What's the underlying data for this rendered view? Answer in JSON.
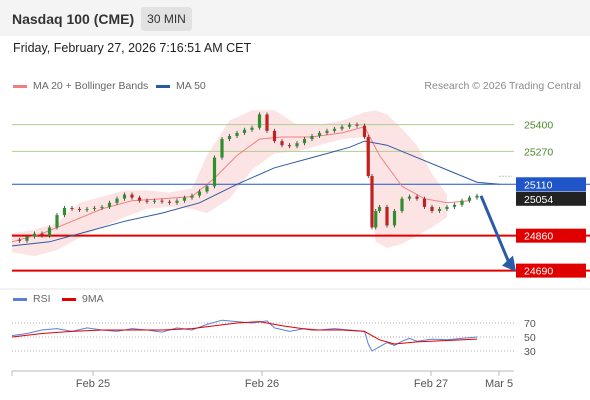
{
  "header": {
    "title": "Nasdaq 100 (CME)",
    "timeframe": "30 MIN"
  },
  "datetime": "Friday, February 27, 2026 7:16:51 AM CET",
  "legend": [
    {
      "label": "MA 20 + Bollinger Bands",
      "color": "#f08080"
    },
    {
      "label": "MA 50",
      "color": "#2c5aa0"
    }
  ],
  "copyright": "Research © 2026 Trading Central",
  "rsi_legend": [
    {
      "label": "RSI",
      "color": "#5b7fd6"
    },
    {
      "label": "9MA",
      "color": "#e00000"
    }
  ],
  "chart_data": {
    "type": "line",
    "x_ticks": [
      "Feb 25",
      "Feb 26",
      "Feb 27",
      "Mar 5"
    ],
    "ylim": [
      24620,
      25520
    ],
    "current_price": 25054,
    "levels": [
      {
        "value": 25400,
        "label": "25400",
        "kind": "resistance"
      },
      {
        "value": 25270,
        "label": "25270",
        "kind": "resistance"
      },
      {
        "value": 25110,
        "label": "25110",
        "kind": "pivot"
      },
      {
        "value": 24860,
        "label": "24860",
        "kind": "support"
      },
      {
        "value": 24690,
        "label": "24690",
        "kind": "support"
      }
    ],
    "price_series": [
      [
        0,
        24840
      ],
      [
        2,
        24835
      ],
      [
        4,
        24855
      ],
      [
        6,
        24870
      ],
      [
        8,
        24860
      ],
      [
        10,
        24900
      ],
      [
        12,
        24960
      ],
      [
        14,
        24995
      ],
      [
        16,
        24990
      ],
      [
        18,
        24985
      ],
      [
        20,
        24990
      ],
      [
        22,
        24995
      ],
      [
        24,
        25000
      ],
      [
        26,
        25020
      ],
      [
        28,
        25040
      ],
      [
        30,
        25060
      ],
      [
        32,
        25045
      ],
      [
        34,
        25030
      ],
      [
        36,
        25025
      ],
      [
        38,
        25030
      ],
      [
        40,
        25025
      ],
      [
        42,
        25020
      ],
      [
        44,
        25030
      ],
      [
        46,
        25045
      ],
      [
        48,
        25055
      ],
      [
        50,
        25075
      ],
      [
        52,
        25100
      ],
      [
        54,
        25240
      ],
      [
        56,
        25330
      ],
      [
        58,
        25345
      ],
      [
        60,
        25360
      ],
      [
        62,
        25375
      ],
      [
        64,
        25385
      ],
      [
        66,
        25450
      ],
      [
        68,
        25370
      ],
      [
        70,
        25320
      ],
      [
        72,
        25300
      ],
      [
        74,
        25295
      ],
      [
        76,
        25310
      ],
      [
        78,
        25330
      ],
      [
        80,
        25345
      ],
      [
        82,
        25360
      ],
      [
        84,
        25370
      ],
      [
        86,
        25380
      ],
      [
        88,
        25390
      ],
      [
        90,
        25400
      ],
      [
        92,
        25395
      ],
      [
        94,
        25340
      ],
      [
        95,
        25150
      ],
      [
        96,
        24900
      ],
      [
        97,
        24980
      ],
      [
        98,
        25000
      ],
      [
        100,
        24910
      ],
      [
        102,
        24980
      ],
      [
        104,
        25040
      ],
      [
        106,
        25050
      ],
      [
        108,
        25040
      ],
      [
        110,
        25000
      ],
      [
        112,
        24980
      ],
      [
        114,
        24990
      ],
      [
        116,
        25000
      ],
      [
        118,
        25010
      ],
      [
        120,
        25030
      ],
      [
        122,
        25045
      ],
      [
        124,
        25054
      ]
    ],
    "bb_upper": [
      [
        0,
        24870
      ],
      [
        6,
        24890
      ],
      [
        12,
        24920
      ],
      [
        18,
        25020
      ],
      [
        24,
        25050
      ],
      [
        30,
        25080
      ],
      [
        36,
        25080
      ],
      [
        42,
        25070
      ],
      [
        48,
        25090
      ],
      [
        52,
        25250
      ],
      [
        58,
        25420
      ],
      [
        64,
        25470
      ],
      [
        70,
        25470
      ],
      [
        76,
        25400
      ],
      [
        82,
        25400
      ],
      [
        88,
        25420
      ],
      [
        94,
        25460
      ],
      [
        97,
        25470
      ],
      [
        100,
        25450
      ],
      [
        104,
        25380
      ],
      [
        108,
        25300
      ],
      [
        112,
        25160
      ],
      [
        116,
        25060
      ]
    ],
    "bb_lower": [
      [
        0,
        24780
      ],
      [
        6,
        24760
      ],
      [
        12,
        24790
      ],
      [
        18,
        24850
      ],
      [
        24,
        24900
      ],
      [
        30,
        24950
      ],
      [
        36,
        24990
      ],
      [
        42,
        25000
      ],
      [
        48,
        24990
      ],
      [
        52,
        24970
      ],
      [
        58,
        25040
      ],
      [
        64,
        25180
      ],
      [
        70,
        25260
      ],
      [
        76,
        25270
      ],
      [
        82,
        25300
      ],
      [
        88,
        25330
      ],
      [
        94,
        25340
      ],
      [
        97,
        24830
      ],
      [
        100,
        24800
      ],
      [
        104,
        24820
      ],
      [
        108,
        24860
      ],
      [
        112,
        24900
      ],
      [
        116,
        24950
      ]
    ],
    "ma20": [
      [
        0,
        24830
      ],
      [
        8,
        24870
      ],
      [
        16,
        24930
      ],
      [
        24,
        24990
      ],
      [
        32,
        25030
      ],
      [
        40,
        25040
      ],
      [
        48,
        25050
      ],
      [
        54,
        25140
      ],
      [
        60,
        25250
      ],
      [
        66,
        25330
      ],
      [
        72,
        25340
      ],
      [
        80,
        25340
      ],
      [
        88,
        25360
      ],
      [
        94,
        25390
      ],
      [
        98,
        25250
      ],
      [
        104,
        25100
      ],
      [
        110,
        25040
      ],
      [
        116,
        25020
      ],
      [
        122,
        25030
      ]
    ],
    "ma50": [
      [
        0,
        24810
      ],
      [
        10,
        24830
      ],
      [
        20,
        24880
      ],
      [
        30,
        24930
      ],
      [
        40,
        24970
      ],
      [
        50,
        25020
      ],
      [
        60,
        25110
      ],
      [
        70,
        25190
      ],
      [
        80,
        25240
      ],
      [
        90,
        25290
      ],
      [
        94,
        25320
      ],
      [
        100,
        25300
      ],
      [
        108,
        25240
      ],
      [
        116,
        25180
      ],
      [
        124,
        25120
      ],
      [
        130,
        25110
      ]
    ],
    "rsi_levels": [
      70,
      50,
      30
    ],
    "rsi": [
      [
        0,
        52
      ],
      [
        4,
        55
      ],
      [
        8,
        60
      ],
      [
        12,
        62
      ],
      [
        16,
        58
      ],
      [
        20,
        63
      ],
      [
        24,
        60
      ],
      [
        28,
        58
      ],
      [
        32,
        62
      ],
      [
        36,
        60
      ],
      [
        40,
        57
      ],
      [
        44,
        63
      ],
      [
        48,
        60
      ],
      [
        52,
        68
      ],
      [
        56,
        74
      ],
      [
        60,
        72
      ],
      [
        64,
        70
      ],
      [
        68,
        73
      ],
      [
        70,
        63
      ],
      [
        74,
        58
      ],
      [
        78,
        62
      ],
      [
        82,
        60
      ],
      [
        86,
        62
      ],
      [
        90,
        60
      ],
      [
        94,
        58
      ],
      [
        95,
        40
      ],
      [
        96,
        30
      ],
      [
        98,
        36
      ],
      [
        100,
        42
      ],
      [
        102,
        38
      ],
      [
        104,
        44
      ],
      [
        106,
        48
      ],
      [
        108,
        44
      ],
      [
        112,
        47
      ],
      [
        116,
        46
      ],
      [
        120,
        48
      ],
      [
        124,
        50
      ]
    ],
    "rsi_ma": [
      [
        0,
        50
      ],
      [
        8,
        55
      ],
      [
        16,
        58
      ],
      [
        24,
        60
      ],
      [
        32,
        60
      ],
      [
        40,
        60
      ],
      [
        48,
        62
      ],
      [
        54,
        66
      ],
      [
        60,
        70
      ],
      [
        66,
        72
      ],
      [
        72,
        66
      ],
      [
        80,
        60
      ],
      [
        88,
        60
      ],
      [
        94,
        58
      ],
      [
        98,
        46
      ],
      [
        102,
        40
      ],
      [
        108,
        43
      ],
      [
        116,
        45
      ],
      [
        124,
        47
      ]
    ]
  }
}
